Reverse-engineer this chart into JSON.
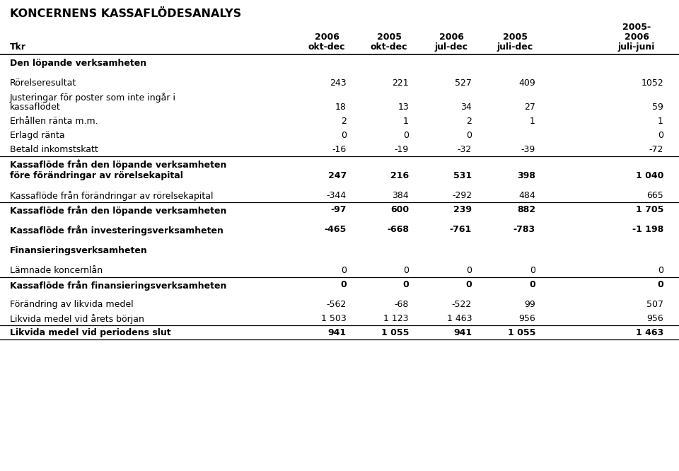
{
  "title": "KONCERNENS KASSAFLÖDESANALYS",
  "rows": [
    {
      "label": "Den löpande verksamheten",
      "values": [
        "",
        "",
        "",
        "",
        ""
      ],
      "bold": true,
      "section_header": true,
      "rh": 1.4
    },
    {
      "label": "Rörelseresultat",
      "values": [
        "243",
        "221",
        "527",
        "409",
        "1052"
      ],
      "bold": false,
      "rh": 1.0
    },
    {
      "label": "Justeringar för poster som inte ingår i",
      "values": [
        "",
        "",
        "",
        "",
        ""
      ],
      "bold": false,
      "rh": 0.7
    },
    {
      "label": "kassaflödet",
      "values": [
        "18",
        "13",
        "34",
        "27",
        "59"
      ],
      "bold": false,
      "rh": 1.0
    },
    {
      "label": "Erhållen ränta m.m.",
      "values": [
        "2",
        "1",
        "2",
        "1",
        "1"
      ],
      "bold": false,
      "rh": 1.0
    },
    {
      "label": "Erlagd ränta",
      "values": [
        "0",
        "0",
        "0",
        "",
        "0"
      ],
      "bold": false,
      "rh": 1.0
    },
    {
      "label": "Betald inkomstskatt",
      "values": [
        "-16",
        "-19",
        "-32",
        "-39",
        "-72"
      ],
      "bold": false,
      "rh": 1.0,
      "bottom_line": true
    },
    {
      "label": "Kassaflöde från den löpande verksamheten",
      "values": [
        "",
        "",
        "",
        "",
        ""
      ],
      "bold": true,
      "rh": 0.85
    },
    {
      "label": "före förändringar av rörelsekapital",
      "values": [
        "247",
        "216",
        "531",
        "398",
        "1 040"
      ],
      "bold": true,
      "rh": 1.4
    },
    {
      "label": "Kassaflöde från förändringar av rörelsekapital",
      "values": [
        "-344",
        "384",
        "-292",
        "484",
        "665"
      ],
      "bold": false,
      "rh": 1.0,
      "bottom_line": true
    },
    {
      "label": "Kassaflöde från den löpande verksamheten",
      "values": [
        "-97",
        "600",
        "239",
        "882",
        "1 705"
      ],
      "bold": true,
      "rh": 1.4
    },
    {
      "label": "Kassaflöde från investeringsverksamheten",
      "values": [
        "-465",
        "-668",
        "-761",
        "-783",
        "-1 198"
      ],
      "bold": true,
      "rh": 1.5
    },
    {
      "label": "Finansieringsverksamheten",
      "values": [
        "",
        "",
        "",
        "",
        ""
      ],
      "bold": true,
      "section_header": true,
      "rh": 1.4
    },
    {
      "label": "Lämnade koncernlån",
      "values": [
        "0",
        "0",
        "0",
        "0",
        "0"
      ],
      "bold": false,
      "rh": 1.0,
      "bottom_line": true
    },
    {
      "label": "Kassaflöde från finansieringsverksamheten",
      "values": [
        "0",
        "0",
        "0",
        "0",
        "0"
      ],
      "bold": true,
      "rh": 1.4
    },
    {
      "label": "Förändring av likvida medel",
      "values": [
        "-562",
        "-68",
        "-522",
        "99",
        "507"
      ],
      "bold": false,
      "rh": 1.0
    },
    {
      "label": "Likvida medel vid årets början",
      "values": [
        "1 503",
        "1 123",
        "1 463",
        "956",
        "956"
      ],
      "bold": false,
      "rh": 1.0,
      "bottom_line": true
    },
    {
      "label": "Likvida medel vid periodens slut",
      "values": [
        "941",
        "1 055",
        "941",
        "1 055",
        "1 463"
      ],
      "bold": true,
      "rh": 1.0,
      "bottom_line": true
    }
  ],
  "bg_color": "#ffffff",
  "text_color": "#000000",
  "font_size": 9.0,
  "title_font_size": 11.5,
  "header_font_size": 9.0
}
